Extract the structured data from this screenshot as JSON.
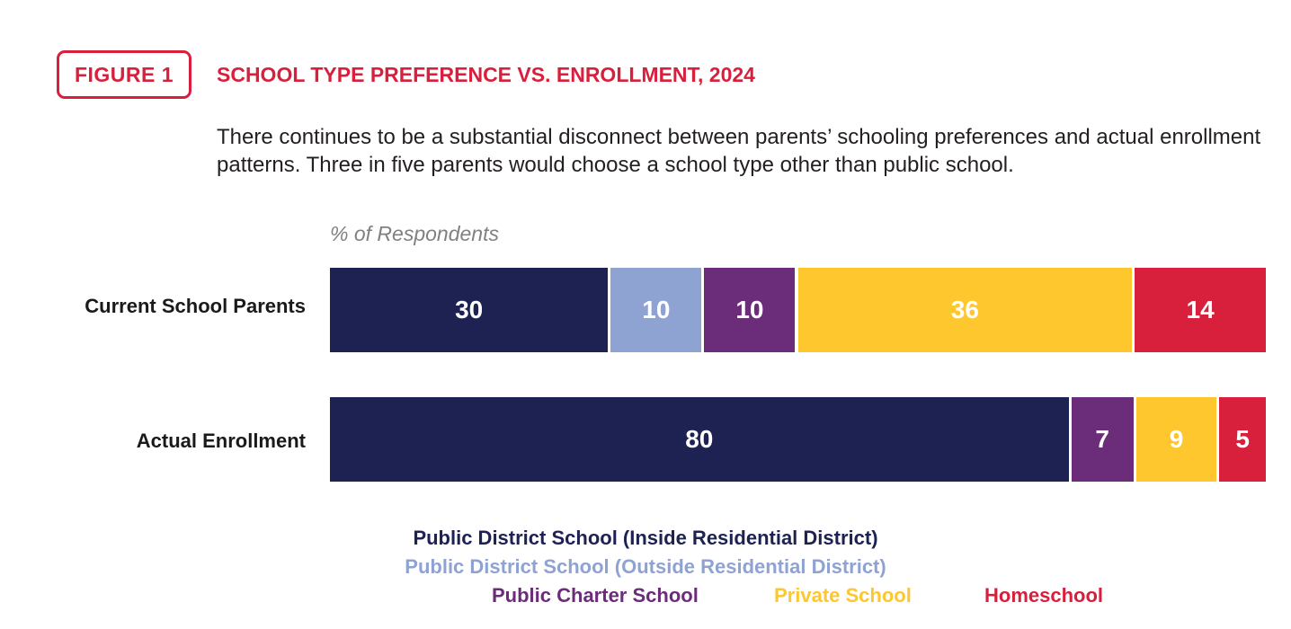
{
  "figure": {
    "badge": "FIGURE 1",
    "title": "SCHOOL TYPE PREFERENCE VS. ENROLLMENT, 2024",
    "description": "There continues to be a substantial disconnect between parents’ schooling preferences and actual enrollment patterns. Three in five parents would choose a school type other than public school."
  },
  "chart_data": {
    "type": "bar",
    "orientation": "horizontal",
    "stacked": true,
    "axis_note": "% of Respondents",
    "categories": [
      "Current School Parents",
      "Actual Enrollment"
    ],
    "series": [
      {
        "name": "Public District School (Inside Residential District)",
        "color": "#1d2253",
        "values": [
          30,
          80
        ]
      },
      {
        "name": "Public District School (Outside Residential District)",
        "color": "#8fa3d3",
        "values": [
          10,
          null
        ]
      },
      {
        "name": "Public Charter School",
        "color": "#6b2c7a",
        "values": [
          10,
          7
        ]
      },
      {
        "name": "Private School",
        "color": "#fdc72d",
        "values": [
          36,
          9
        ]
      },
      {
        "name": "Homeschool",
        "color": "#d81f3c",
        "values": [
          14,
          5
        ]
      }
    ],
    "data_labels": true,
    "legend_position": "bottom",
    "grid": false
  },
  "colors": {
    "accent": "#d81f3c"
  }
}
